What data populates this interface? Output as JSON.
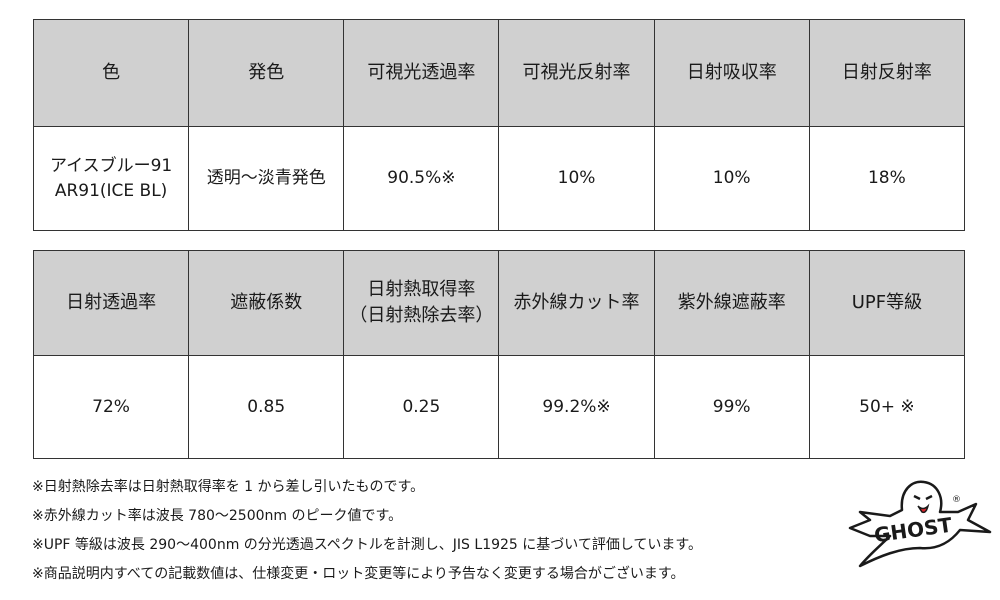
{
  "table1": {
    "headers": [
      "色",
      "発色",
      "可視光透過率",
      "可視光反射率",
      "日射吸収率",
      "日射反射率"
    ],
    "row": {
      "color_line1": "アイスブルー91",
      "color_line2": "AR91(ICE BL)",
      "hue": "透明〜淡青発色",
      "visible_transmittance": "90.5%※",
      "visible_reflectance": "10%",
      "solar_absorptance": "10%",
      "solar_reflectance": "18%"
    }
  },
  "table2": {
    "headers": [
      "日射透過率",
      "遮蔽係数",
      "日射熱取得率",
      "（日射熱除去率）",
      "赤外線カット率",
      "紫外線遮蔽率",
      "UPF等級"
    ],
    "row": [
      "72%",
      "0.85",
      "0.25",
      "99.2%※",
      "99%",
      "50+ ※"
    ]
  },
  "notes": [
    "※日射熱除去率は日射熱取得率を 1 から差し引いたものです。",
    "※赤外線カット率は波長 780〜2500nm のピーク値です。",
    "※UPF 等級は波長 290〜400nm の分光透過スペクトルを計測し、JIS L1925 に基づいて評価しています。",
    "※商品説明内すべての記載数値は、仕様変更・ロット変更等により予告なく変更する場合がございます。"
  ],
  "logo": {
    "text": "GHOST",
    "mark": "®"
  }
}
